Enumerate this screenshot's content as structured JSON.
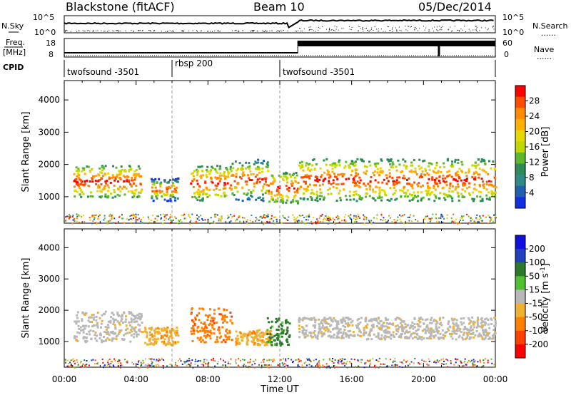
{
  "header": {
    "station": "Blackstone (fitACF)",
    "beam": "Beam 10",
    "date": "05/Dec/2014"
  },
  "labels": {
    "nsky": "N.Sky",
    "nsearch": "N.Search",
    "freq": "Freq.",
    "mhz": "[MHz]",
    "nave": "Nave",
    "cpid": "CPID",
    "dots": "......"
  },
  "noise_axis": {
    "top": "10^5",
    "bottom": "10^0"
  },
  "freq_axis": {
    "left_ticks": [
      "18",
      "8"
    ],
    "right_ticks": [
      "60",
      "0"
    ]
  },
  "cpid_segments": [
    {
      "label": "twofsound -3501",
      "start_hour": 0,
      "end_hour": 6
    },
    {
      "label": "rbsp 200",
      "start_hour": 6,
      "end_hour": 12
    },
    {
      "label": "twofsound -3501",
      "start_hour": 12,
      "end_hour": 24
    }
  ],
  "chart_data": [
    {
      "type": "heatmap",
      "panel": "power",
      "ylabel": "Slant Range [km]",
      "xlabel": "Time UT",
      "xlim": [
        0,
        24
      ],
      "ylim": [
        180,
        4600
      ],
      "x_ticks": [
        "00:00",
        "04:00",
        "08:00",
        "12:00",
        "16:00",
        "20:00",
        "00:00"
      ],
      "y_ticks": [
        "1000",
        "2000",
        "3000",
        "4000"
      ],
      "colorbar": {
        "label": "Power [dB]",
        "ticks": [
          "28",
          "24",
          "20",
          "16",
          "12",
          "8",
          "4"
        ],
        "colors": [
          "#ff0000",
          "#ff4d00",
          "#ff8c00",
          "#ffb000",
          "#e8d800",
          "#c0d800",
          "#5fb82a",
          "#2e8b57",
          "#2f8a8a",
          "#2060b0",
          "#1030e0"
        ]
      },
      "features": [
        {
          "start_hour": 0.5,
          "end_hour": 4.3,
          "range_km": [
            1000,
            2000
          ],
          "peak_db": 28
        },
        {
          "start_hour": 4.8,
          "end_hour": 6.3,
          "range_km": [
            900,
            1600
          ],
          "peak_db": 14
        },
        {
          "start_hour": 7.0,
          "end_hour": 9.3,
          "range_km": [
            900,
            2000
          ],
          "peak_db": 26
        },
        {
          "start_hour": 9.3,
          "end_hour": 11.3,
          "range_km": [
            900,
            2200
          ],
          "peak_db": 18
        },
        {
          "start_hour": 11.3,
          "end_hour": 13.0,
          "range_km": [
            800,
            1800
          ],
          "peak_db": 26
        },
        {
          "start_hour": 13.0,
          "end_hour": 24.0,
          "range_km": [
            900,
            2200
          ],
          "peak_db": 26
        }
      ]
    },
    {
      "type": "heatmap",
      "panel": "velocity",
      "ylabel": "Slant Range [km]",
      "xlabel": "Time UT",
      "xlim": [
        0,
        24
      ],
      "ylim": [
        180,
        4600
      ],
      "x_ticks": [
        "00:00",
        "04:00",
        "08:00",
        "12:00",
        "16:00",
        "20:00",
        "00:00"
      ],
      "y_ticks": [
        "1000",
        "2000",
        "3000",
        "4000"
      ],
      "colorbar": {
        "label": "Velocity [m s^-1]",
        "ticks": [
          "200",
          "100",
          "50",
          "15",
          "-15",
          "-50",
          "-100",
          "-200"
        ],
        "colors": [
          "#1010e0",
          "#2040c0",
          "#2a7a2a",
          "#50c030",
          "#b8b8b8",
          "#f0b030",
          "#ff7f00",
          "#ff4000",
          "#ff0000"
        ]
      },
      "features": [
        {
          "start_hour": 0.5,
          "end_hour": 4.3,
          "range_km": [
            1000,
            2000
          ],
          "velocity": -15
        },
        {
          "start_hour": 4.3,
          "end_hour": 6.3,
          "range_km": [
            900,
            1500
          ],
          "velocity": -50
        },
        {
          "start_hour": 7.0,
          "end_hour": 9.3,
          "range_km": [
            1000,
            2100
          ],
          "velocity": -100
        },
        {
          "start_hour": 9.5,
          "end_hour": 11.5,
          "range_km": [
            900,
            1400
          ],
          "velocity": -50
        },
        {
          "start_hour": 11.2,
          "end_hour": 12.5,
          "range_km": [
            900,
            1800
          ],
          "velocity": 50
        },
        {
          "start_hour": 13.0,
          "end_hour": 24.0,
          "range_km": [
            1100,
            1800
          ],
          "velocity": -15
        }
      ]
    }
  ]
}
